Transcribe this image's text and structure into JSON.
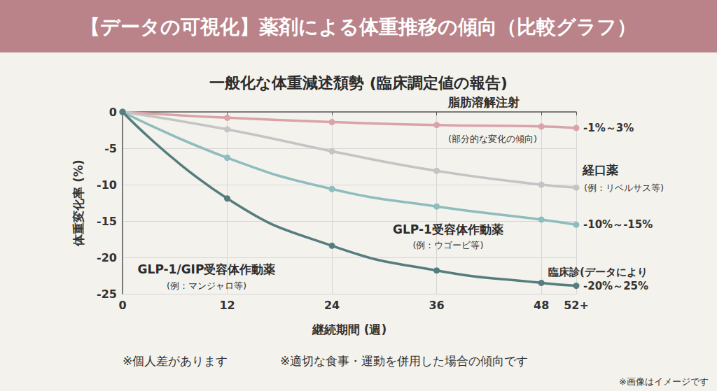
{
  "chart_data": {
    "type": "line",
    "title": "【データの可視化】薬剤による体重推移の傾向（比較グラフ）",
    "subtitle": "一般化な体重減述頹勢 (臨床調定値の報告)",
    "x_label": "継続期間 (週)",
    "y_label": "体重変化率 (%)",
    "x": [
      0,
      12,
      24,
      36,
      48,
      52
    ],
    "xlim": [
      0,
      52
    ],
    "xticks": [
      0,
      12,
      24,
      36,
      48,
      {
        "value": 52,
        "label": "52+"
      }
    ],
    "ylim": [
      -25,
      0
    ],
    "yticks": [
      0,
      -5,
      -10,
      -15,
      -20,
      -25
    ],
    "grid": true,
    "marker": "circle",
    "series": [
      {
        "name": "脂肪溶解注射",
        "note": "(部分的な変化の傾向)",
        "end_labels": [
          "-1%～3%"
        ],
        "color": "#d9a3a8",
        "values": [
          0,
          -0.8,
          -1.4,
          -1.8,
          -2.0,
          -2.2
        ]
      },
      {
        "name": "経口薬",
        "note": "(例：リベルサス等)",
        "color": "#c4c4c4",
        "values": [
          0,
          -2.4,
          -5.4,
          -8.1,
          -10.0,
          -10.4
        ]
      },
      {
        "name": "GLP-1受容体作動薬",
        "note": "(例：ウゴービ等)",
        "end_labels": [
          "-10%～-15%"
        ],
        "color": "#8fbcbc",
        "values": [
          0,
          -6.3,
          -10.6,
          -13.0,
          -14.8,
          -15.5
        ]
      },
      {
        "name": "GLP-1/GIP受容体作動薬",
        "note": "(例：マンジャロ等)",
        "end_labels": [
          "臨床診(データにより",
          "-20%～25%"
        ],
        "color": "#557d7d",
        "values": [
          0,
          -11.9,
          -18.4,
          -21.8,
          -23.5,
          -23.9
        ]
      }
    ],
    "footnotes": [
      "※個人差があります",
      "※適切な食事・運動を併用した場合の傾向です"
    ],
    "image_note": "※画像はイメージです"
  }
}
